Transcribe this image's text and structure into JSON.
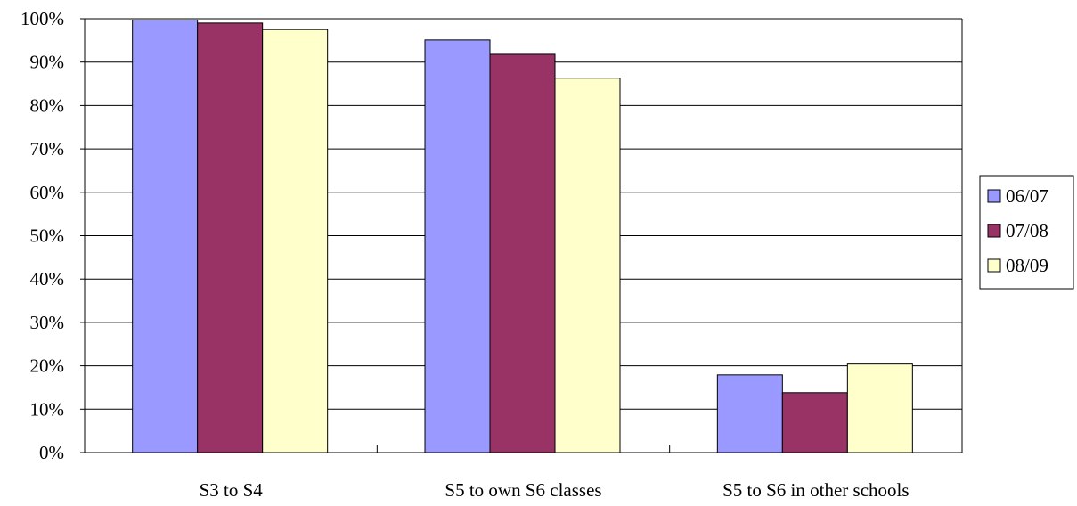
{
  "chart_data": {
    "type": "bar",
    "title": "",
    "xlabel": "",
    "ylabel": "",
    "categories": [
      "S3 to S4",
      "S5 to own S6 classes",
      "S5 to S6 in other schools"
    ],
    "series": [
      {
        "name": "06/07",
        "color": "#9999ff",
        "values": [
          99.7,
          95.1,
          17.9
        ]
      },
      {
        "name": "07/08",
        "color": "#993366",
        "values": [
          99.0,
          91.8,
          13.8
        ]
      },
      {
        "name": "08/09",
        "color": "#ffffcc",
        "values": [
          97.5,
          86.3,
          20.4
        ]
      }
    ],
    "ylim": [
      0,
      100
    ],
    "yticks": [
      "0%",
      "10%",
      "20%",
      "30%",
      "40%",
      "50%",
      "60%",
      "70%",
      "80%",
      "90%",
      "100%"
    ],
    "grid": true,
    "legend_position": "right"
  }
}
